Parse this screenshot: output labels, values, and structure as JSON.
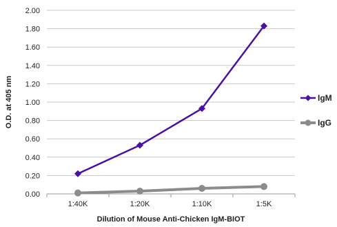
{
  "chart_data": {
    "type": "line",
    "categories": [
      "1:40K",
      "1:20K",
      "1:10K",
      "1:5K"
    ],
    "series": [
      {
        "name": "IgM",
        "values": [
          0.22,
          0.53,
          0.93,
          1.83
        ],
        "color": "#4B0FA6",
        "marker": "diamond"
      },
      {
        "name": "IgG",
        "values": [
          0.01,
          0.03,
          0.06,
          0.08
        ],
        "color": "#8C8C8C",
        "marker": "circle"
      }
    ],
    "title": "",
    "xlabel": "Dilution of Mouse Anti-Chicken IgM-BIOT",
    "ylabel": "O.D. at 405 nm",
    "ylim": [
      0,
      2.0
    ],
    "yticks": [
      "0.00",
      "0.20",
      "0.40",
      "0.60",
      "0.80",
      "1.00",
      "1.20",
      "1.40",
      "1.60",
      "1.80",
      "2.00"
    ],
    "grid": true,
    "legend": "right"
  }
}
